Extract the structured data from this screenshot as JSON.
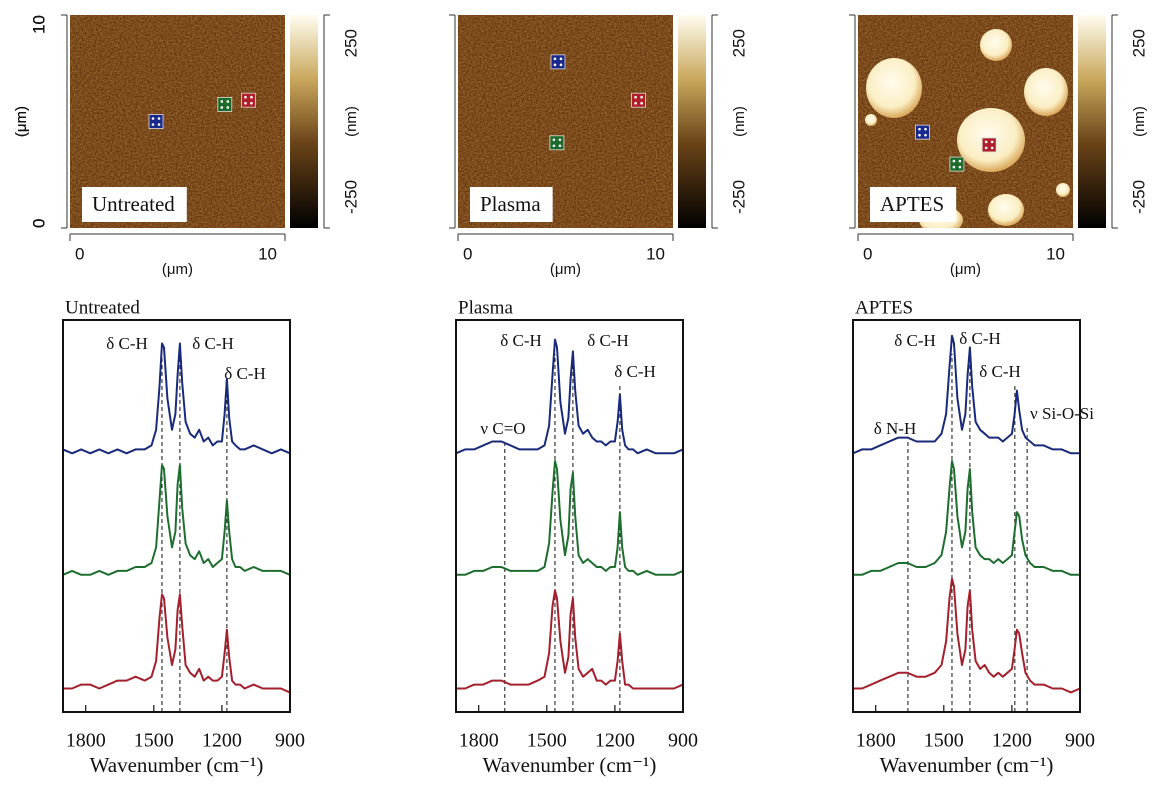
{
  "chart_data": [
    {
      "type": "heatmap",
      "label": "Untreated",
      "xlabel": "(μm)",
      "ylabel": "(μm)",
      "xlim": [
        0,
        10
      ],
      "ylim": [
        0,
        10
      ],
      "xticks": [
        0,
        10
      ],
      "yticks": [
        0,
        10
      ],
      "colorbar": {
        "label": "(nm)",
        "lim": [
          -250,
          250
        ],
        "ticks": [
          250,
          -250
        ]
      },
      "points": [
        {
          "x": 4.0,
          "y": 5.0,
          "color": "#1a2a8c"
        },
        {
          "x": 7.2,
          "y": 5.8,
          "color": "#1c6b2a"
        },
        {
          "x": 8.3,
          "y": 6.0,
          "color": "#b0202a"
        }
      ]
    },
    {
      "type": "heatmap",
      "label": "Plasma",
      "xlabel": "(μm)",
      "ylabel": "(μm)",
      "xlim": [
        0,
        10
      ],
      "ylim": [
        0,
        10
      ],
      "xticks": [
        0,
        10
      ],
      "yticks": [
        0,
        10
      ],
      "colorbar": {
        "label": "(nm)",
        "lim": [
          -250,
          250
        ],
        "ticks": [
          250,
          -250
        ]
      },
      "points": [
        {
          "x": 4.65,
          "y": 7.8,
          "color": "#1a2a8c"
        },
        {
          "x": 8.4,
          "y": 6.0,
          "color": "#b0202a"
        },
        {
          "x": 4.6,
          "y": 4.0,
          "color": "#1c6b2a"
        }
      ]
    },
    {
      "type": "heatmap",
      "label": "APTES",
      "xlabel": "(μm)",
      "ylabel": "(μm)",
      "xlim": [
        0,
        10
      ],
      "ylim": [
        0,
        10
      ],
      "xticks": [
        0,
        10
      ],
      "yticks": [
        0,
        10
      ],
      "colorbar": {
        "label": "(nm)",
        "lim": [
          -250,
          250
        ],
        "ticks": [
          250,
          -250
        ]
      },
      "points": [
        {
          "x": 3.0,
          "y": 4.5,
          "color": "#1a2a8c"
        },
        {
          "x": 6.1,
          "y": 3.9,
          "color": "#b0202a"
        },
        {
          "x": 4.6,
          "y": 3.0,
          "color": "#1c6b2a"
        }
      ]
    },
    {
      "type": "line",
      "title": "Untreated",
      "xlabel": "Wavenumber (cm⁻¹)",
      "xlim": [
        1900,
        900
      ],
      "ylim": [
        0,
        10
      ],
      "xticks": [
        1800,
        1500,
        1200,
        900
      ],
      "markers": [
        1464,
        1385,
        1178
      ],
      "annotations": [
        "δ C-H",
        "δ C-H",
        "δ C-H"
      ],
      "x": [
        1900,
        1860,
        1820,
        1780,
        1740,
        1700,
        1660,
        1620,
        1580,
        1540,
        1510,
        1490,
        1475,
        1464,
        1455,
        1440,
        1420,
        1405,
        1395,
        1385,
        1375,
        1360,
        1340,
        1320,
        1300,
        1280,
        1260,
        1240,
        1220,
        1200,
        1188,
        1178,
        1168,
        1155,
        1140,
        1120,
        1100,
        1060,
        1020,
        980,
        940,
        900
      ],
      "series": [
        {
          "color": "#1a2a7a",
          "values": [
            6.7,
            6.6,
            6.7,
            6.6,
            6.7,
            6.6,
            6.7,
            6.6,
            6.7,
            6.7,
            6.8,
            7.2,
            8.3,
            9.4,
            9.3,
            8.0,
            7.2,
            7.6,
            8.6,
            9.4,
            8.4,
            7.4,
            7.1,
            7.0,
            7.2,
            6.9,
            7.0,
            6.8,
            6.9,
            6.9,
            7.6,
            8.5,
            7.5,
            6.9,
            6.8,
            6.7,
            6.7,
            6.8,
            6.7,
            6.6,
            6.7,
            6.6
          ]
        },
        {
          "color": "#1e6e30",
          "values": [
            3.5,
            3.6,
            3.5,
            3.5,
            3.6,
            3.5,
            3.6,
            3.6,
            3.7,
            3.7,
            3.8,
            4.2,
            5.4,
            6.3,
            6.2,
            5.0,
            4.2,
            4.6,
            5.8,
            6.3,
            5.2,
            4.3,
            4.0,
            3.9,
            4.1,
            3.8,
            3.9,
            3.7,
            3.8,
            3.9,
            4.6,
            5.4,
            4.6,
            3.9,
            3.7,
            3.7,
            3.6,
            3.7,
            3.6,
            3.6,
            3.6,
            3.5
          ]
        },
        {
          "color": "#a3202c",
          "values": [
            0.6,
            0.6,
            0.7,
            0.7,
            0.6,
            0.7,
            0.8,
            0.8,
            0.9,
            0.8,
            0.9,
            1.3,
            2.4,
            3.0,
            2.9,
            1.9,
            1.2,
            1.6,
            2.6,
            3.0,
            2.2,
            1.2,
            1.0,
            0.9,
            1.1,
            0.8,
            0.9,
            0.8,
            0.8,
            0.9,
            1.5,
            2.1,
            1.4,
            0.8,
            0.7,
            0.7,
            0.6,
            0.7,
            0.6,
            0.6,
            0.6,
            0.5
          ]
        }
      ]
    },
    {
      "type": "line",
      "title": "Plasma",
      "xlabel": "Wavenumber (cm⁻¹)",
      "xlim": [
        1900,
        900
      ],
      "ylim": [
        0,
        10
      ],
      "xticks": [
        1800,
        1500,
        1200,
        900
      ],
      "markers": [
        1685,
        1464,
        1385,
        1178
      ],
      "annotations": [
        "ν C=O",
        "δ C-H",
        "δ C-H",
        "δ C-H"
      ],
      "x": [
        1900,
        1860,
        1820,
        1780,
        1740,
        1700,
        1660,
        1620,
        1580,
        1540,
        1510,
        1490,
        1475,
        1464,
        1455,
        1440,
        1420,
        1405,
        1395,
        1385,
        1375,
        1360,
        1340,
        1320,
        1300,
        1280,
        1260,
        1240,
        1220,
        1200,
        1188,
        1178,
        1168,
        1155,
        1140,
        1120,
        1100,
        1060,
        1020,
        980,
        940,
        900
      ],
      "series": [
        {
          "color": "#1a2a7a",
          "values": [
            6.6,
            6.7,
            6.7,
            6.8,
            6.9,
            6.9,
            6.8,
            6.7,
            6.7,
            6.7,
            6.8,
            7.3,
            8.6,
            9.5,
            9.3,
            7.9,
            7.1,
            7.5,
            8.5,
            9.2,
            8.2,
            7.3,
            7.1,
            7.2,
            7.0,
            6.9,
            6.9,
            6.8,
            6.9,
            6.9,
            7.4,
            8.1,
            7.2,
            6.8,
            6.7,
            6.7,
            6.6,
            6.7,
            6.6,
            6.6,
            6.6,
            6.7
          ]
        },
        {
          "color": "#1e6e30",
          "values": [
            3.5,
            3.5,
            3.6,
            3.6,
            3.7,
            3.7,
            3.6,
            3.6,
            3.6,
            3.6,
            3.7,
            4.3,
            5.6,
            6.4,
            6.2,
            4.9,
            4.0,
            4.5,
            5.7,
            6.1,
            5.0,
            4.0,
            3.8,
            3.9,
            3.8,
            3.7,
            3.7,
            3.6,
            3.7,
            3.7,
            4.2,
            5.1,
            4.2,
            3.7,
            3.6,
            3.6,
            3.5,
            3.6,
            3.5,
            3.5,
            3.5,
            3.6
          ]
        },
        {
          "color": "#a3202c",
          "values": [
            0.6,
            0.6,
            0.7,
            0.7,
            0.8,
            0.8,
            0.7,
            0.7,
            0.7,
            0.8,
            0.9,
            1.5,
            2.7,
            3.1,
            2.9,
            1.8,
            1.0,
            1.4,
            2.5,
            2.9,
            1.9,
            1.1,
            0.9,
            1.0,
            1.1,
            0.8,
            0.8,
            0.7,
            0.8,
            0.8,
            1.3,
            2.0,
            1.3,
            0.7,
            0.7,
            0.6,
            0.6,
            0.6,
            0.6,
            0.6,
            0.6,
            0.7
          ]
        }
      ]
    },
    {
      "type": "line",
      "title": "APTES",
      "xlabel": "Wavenumber (cm⁻¹)",
      "xlim": [
        1900,
        900
      ],
      "ylim": [
        0,
        10
      ],
      "xticks": [
        1800,
        1500,
        1200,
        900
      ],
      "markers": [
        1658,
        1464,
        1385,
        1187,
        1133
      ],
      "annotations": [
        "δ N-H",
        "δ C-H",
        "δ C-H",
        "δ C-H",
        "ν Si-O-Si"
      ],
      "x": [
        1900,
        1860,
        1820,
        1780,
        1740,
        1700,
        1660,
        1620,
        1580,
        1540,
        1510,
        1490,
        1475,
        1464,
        1455,
        1440,
        1420,
        1405,
        1395,
        1385,
        1375,
        1360,
        1340,
        1320,
        1300,
        1280,
        1260,
        1240,
        1220,
        1200,
        1188,
        1178,
        1168,
        1155,
        1140,
        1120,
        1100,
        1060,
        1020,
        980,
        940,
        900
      ],
      "series": [
        {
          "color": "#1a2a7a",
          "values": [
            6.6,
            6.7,
            6.7,
            6.8,
            6.9,
            7.0,
            7.0,
            6.9,
            6.9,
            6.9,
            7.1,
            7.6,
            8.8,
            9.6,
            9.4,
            8.0,
            7.2,
            7.6,
            8.6,
            9.3,
            8.3,
            7.4,
            7.2,
            7.1,
            7.0,
            7.0,
            7.0,
            6.9,
            7.0,
            7.1,
            7.6,
            8.2,
            7.7,
            7.2,
            7.0,
            6.9,
            6.8,
            6.8,
            6.7,
            6.7,
            6.6,
            6.6
          ]
        },
        {
          "color": "#1e6e30",
          "values": [
            3.5,
            3.5,
            3.6,
            3.6,
            3.7,
            3.8,
            3.8,
            3.7,
            3.7,
            3.8,
            4.0,
            4.6,
            5.7,
            6.4,
            6.2,
            5.0,
            4.2,
            4.6,
            5.7,
            6.2,
            5.1,
            4.2,
            4.0,
            3.9,
            3.9,
            3.8,
            3.9,
            3.8,
            3.9,
            4.0,
            4.6,
            5.1,
            5.0,
            4.4,
            4.0,
            3.8,
            3.7,
            3.7,
            3.6,
            3.6,
            3.5,
            3.5
          ]
        },
        {
          "color": "#a3202c",
          "values": [
            0.6,
            0.6,
            0.7,
            0.8,
            0.9,
            1.0,
            1.0,
            0.9,
            0.9,
            1.0,
            1.2,
            1.8,
            2.9,
            3.4,
            3.2,
            2.0,
            1.2,
            1.6,
            2.7,
            3.1,
            2.1,
            1.3,
            1.1,
            1.2,
            1.0,
            0.9,
            1.0,
            0.9,
            1.0,
            1.1,
            1.6,
            2.1,
            2.0,
            1.5,
            1.0,
            0.8,
            0.7,
            0.7,
            0.6,
            0.6,
            0.5,
            0.6
          ]
        }
      ]
    }
  ]
}
